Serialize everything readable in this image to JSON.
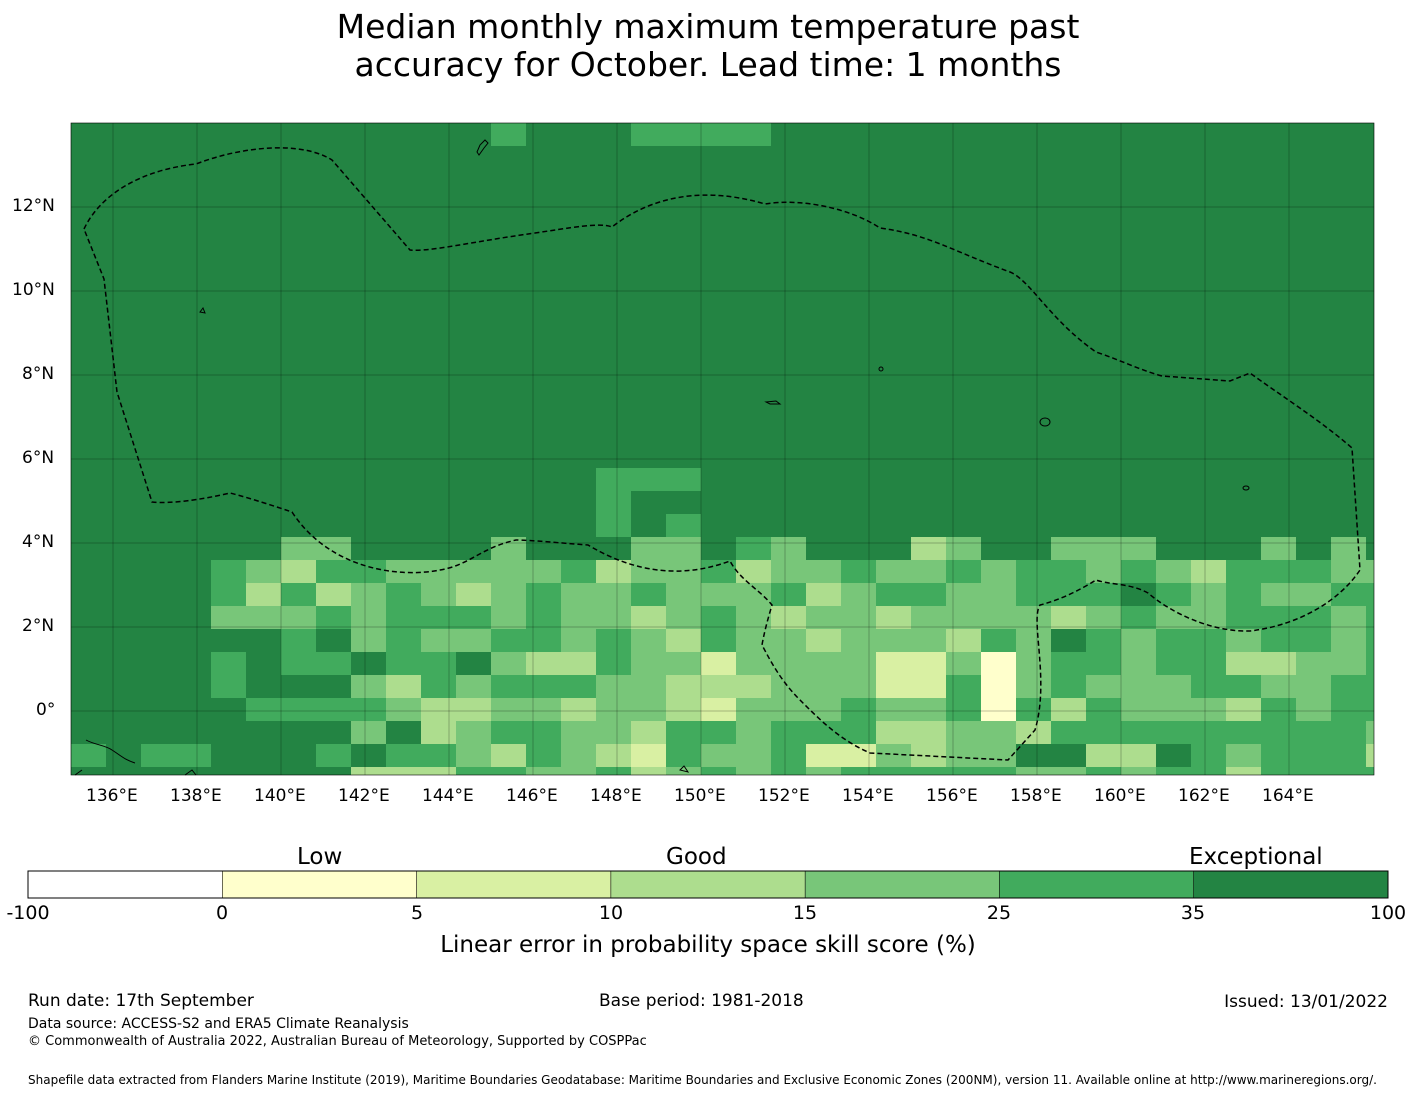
{
  "title_line1": "Median monthly maximum temperature past",
  "title_line2": "accuracy for October. Lead time: 1 months",
  "map": {
    "lon_labels": [
      "136°E",
      "138°E",
      "140°E",
      "142°E",
      "144°E",
      "146°E",
      "148°E",
      "150°E",
      "152°E",
      "154°E",
      "156°E",
      "158°E",
      "160°E",
      "162°E",
      "164°E"
    ],
    "lat_labels": [
      "12°N",
      "10°N",
      "8°N",
      "6°N",
      "4°N",
      "2°N",
      "0°"
    ]
  },
  "colorbar": {
    "categories": [
      "Low",
      "Good",
      "Exceptional"
    ],
    "ticks": [
      "-100",
      "0",
      "5",
      "10",
      "15",
      "25",
      "35",
      "100"
    ],
    "colors": [
      "#ffffff",
      "#ffffcc",
      "#d9f0a3",
      "#addd8e",
      "#78c679",
      "#41ab5d",
      "#238443"
    ],
    "label": "Linear error in probability space skill score (%)"
  },
  "footer": {
    "run_date": "Run date: 17th September",
    "base_period": "Base period: 1981-2018",
    "issued": "Issued: 13/01/2022",
    "data_source": "Data source: ACCESS-S2 and ERA5 Climate Reanalysis",
    "copyright": "© Commonwealth of Australia 2022, Australian Bureau of Meteorology, Supported by COSPPac",
    "shapefile": "Shapefile data extracted from Flanders Marine Institute (2019), Maritime Boundaries Geodatabase: Maritime Boundaries and Exclusive Economic Zones (200NM), version 11. Available online at http://www.marineregions.org/."
  }
}
